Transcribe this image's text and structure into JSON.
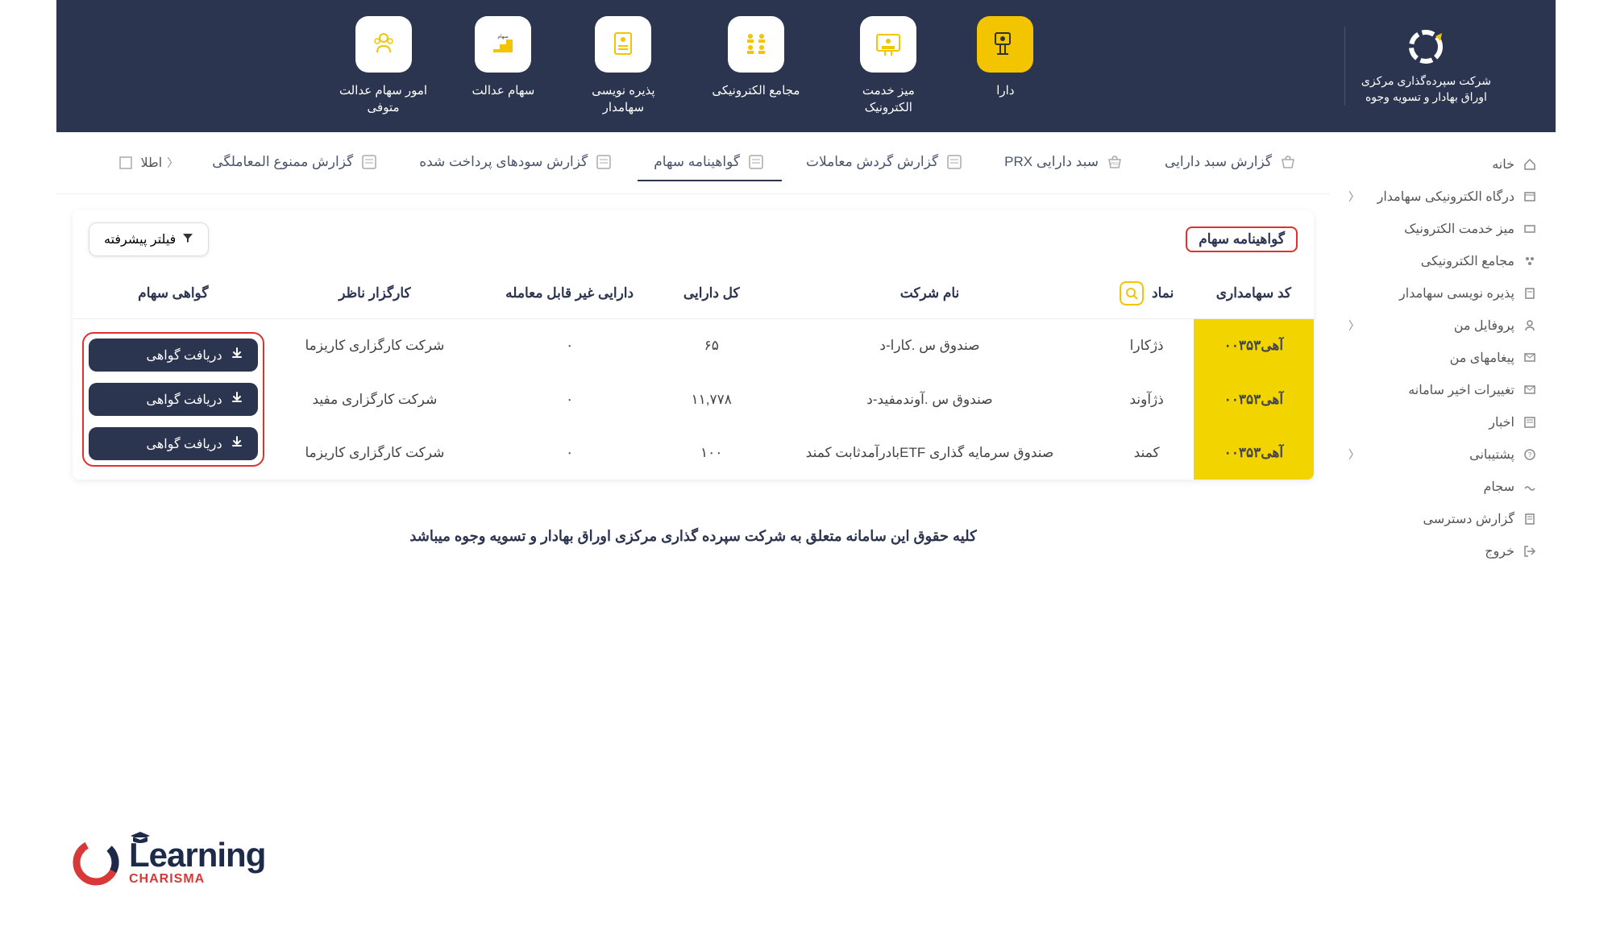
{
  "colors": {
    "header_bg": "#2c3550",
    "accent_yellow": "#f2c500",
    "highlight_yellow": "#f2d400",
    "red_outline": "#e03030",
    "text_dark": "#2c3550",
    "brand_red": "#d93838"
  },
  "header": {
    "logo_line1": "شرکت سپرده‌گذاری مرکزی",
    "logo_line2": "اوراق بهادار و تسویه وجوه",
    "tiles": [
      {
        "label": "دارا",
        "active": true
      },
      {
        "label": "میز خدمت الکترونیک",
        "active": false
      },
      {
        "label": "مجامع الکترونیکی",
        "active": false
      },
      {
        "label": "پذیره نویسی سهامدار",
        "active": false
      },
      {
        "label": "سهام عدالت",
        "active": false
      },
      {
        "label": "امور سهام عدالت متوفی",
        "active": false
      }
    ]
  },
  "sidebar": {
    "items": [
      {
        "label": "خانه",
        "icon": "home"
      },
      {
        "label": "درگاه الکترونیکی سهامدار",
        "icon": "portal",
        "expandable": true
      },
      {
        "label": "میز خدمت الکترونیک",
        "icon": "desk"
      },
      {
        "label": "مجامع الکترونیکی",
        "icon": "assembly"
      },
      {
        "label": "پذیره نویسی سهامدار",
        "icon": "subscription"
      },
      {
        "label": "پروفایل من",
        "icon": "profile",
        "expandable": true
      },
      {
        "label": "پیغامهای من",
        "icon": "messages"
      },
      {
        "label": "تغییرات اخیر سامانه",
        "icon": "changes"
      },
      {
        "label": "اخبار",
        "icon": "news"
      },
      {
        "label": "پشتیبانی",
        "icon": "support",
        "expandable": true
      },
      {
        "label": "سجام",
        "icon": "sejam"
      },
      {
        "label": "گزارش دسترسی",
        "icon": "access"
      },
      {
        "label": "خروج",
        "icon": "logout"
      }
    ]
  },
  "tabs": {
    "items": [
      {
        "label": "گزارش سبد دارایی"
      },
      {
        "label": "سبد دارایی PRX"
      },
      {
        "label": "گزارش گردش معاملات"
      },
      {
        "label": "گواهینامه سهام",
        "active": true
      },
      {
        "label": "گزارش سودهای پرداخت شده"
      },
      {
        "label": "گزارش ممنوع المعاملگی"
      }
    ],
    "more_label": "اطلا"
  },
  "panel": {
    "title": "گواهینامه سهام",
    "filter_label": "فیلتر پیشرفته"
  },
  "table": {
    "columns": [
      "کد سهامداری",
      "نماد",
      "نام شرکت",
      "کل دارایی",
      "دارایی غیر قابل معامله",
      "کارگزار ناظر",
      "گواهی سهام"
    ],
    "download_label": "دریافت گواهی",
    "rows": [
      {
        "code": "آهی۰۰۳۵۳",
        "symbol": "ذژکارا",
        "company": "صندوق س .کارا-د",
        "total": "۶۵",
        "non_tradable": "۰",
        "broker": "شرکت کارگزاری کاریزما"
      },
      {
        "code": "آهی۰۰۳۵۳",
        "symbol": "ذژآوند",
        "company": "صندوق س .آوندمفید-د",
        "total": "۱۱,۷۷۸",
        "non_tradable": "۰",
        "broker": "شرکت کارگزاری مفید"
      },
      {
        "code": "آهی۰۰۳۵۳",
        "symbol": "کمند",
        "company": "صندوق سرمایه گذاری ETFبادرآمدثابت کمند",
        "total": "۱۰۰",
        "non_tradable": "۰",
        "broker": "شرکت کارگزاری کاریزما"
      }
    ]
  },
  "footer": "کلیه حقوق این سامانه متعلق به شرکت سپرده گذاری مرکزی اوراق بهادار و تسویه وجوه میباشد",
  "brand": {
    "learning": "Learning",
    "charisma": "CHARISMA"
  }
}
